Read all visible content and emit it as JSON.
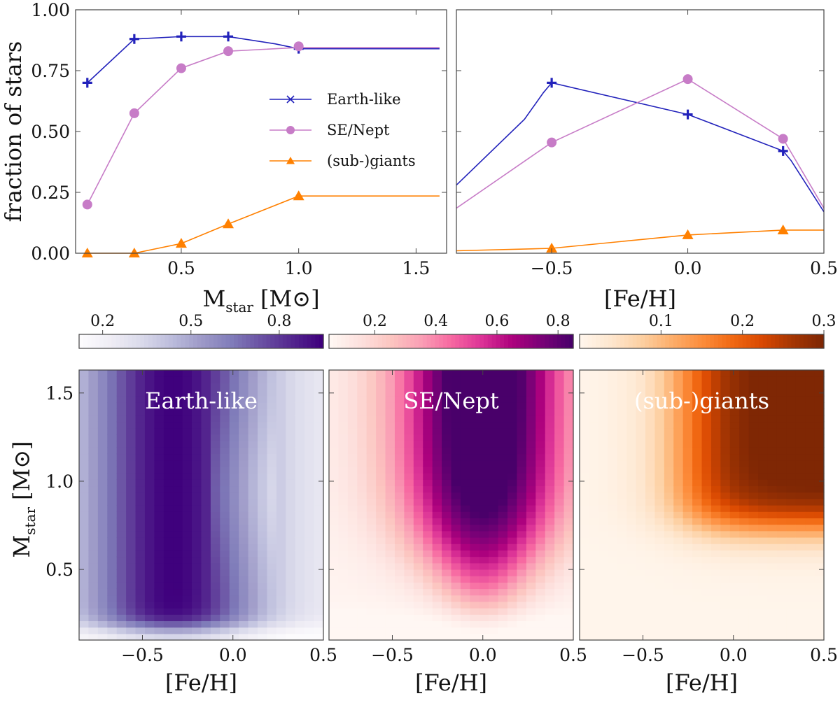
{
  "colors": {
    "earth": "#2222bb",
    "se": "#c77cc7",
    "giants": "#ff8000",
    "purples_max": "#3f007d",
    "rdpu_max": "#49006a",
    "oranges_max": "#7f2704"
  },
  "chart_data": [
    {
      "id": "top-left",
      "type": "line",
      "xlabel": "M",
      "xlabel_sub": "star",
      "xlabel_unit": "[M",
      "xlabel_unit_end": "]",
      "ylabel": "fraction of stars",
      "xlim": [
        0.05,
        1.63
      ],
      "ylim": [
        0.0,
        1.0
      ],
      "xticks": [
        0.5,
        1.0,
        1.5
      ],
      "xticklabels": [
        "0.5",
        "1.0",
        "1.5"
      ],
      "yticks": [
        0.0,
        0.25,
        0.5,
        0.75,
        1.0
      ],
      "yticklabels": [
        "0.00",
        "0.25",
        "0.50",
        "0.75",
        "1.00"
      ],
      "legend": {
        "position": "center-right",
        "entries": [
          "Earth-like",
          "SE/Nept",
          "(sub-)giants"
        ]
      },
      "series": [
        {
          "name": "Earth-like",
          "marker": "plus",
          "color": "#2222bb",
          "x": [
            0.1,
            0.3,
            0.5,
            0.7,
            1.0
          ],
          "y": [
            0.7,
            0.88,
            0.89,
            0.89,
            0.84
          ],
          "line": [
            [
              0.1,
              0.7
            ],
            [
              0.3,
              0.88
            ],
            [
              0.5,
              0.89
            ],
            [
              0.7,
              0.89
            ],
            [
              0.9,
              0.86
            ],
            [
              1.0,
              0.84
            ],
            [
              1.6,
              0.84
            ]
          ]
        },
        {
          "name": "SE/Nept",
          "marker": "circle",
          "color": "#c77cc7",
          "x": [
            0.1,
            0.3,
            0.5,
            0.7,
            1.0
          ],
          "y": [
            0.2,
            0.575,
            0.76,
            0.83,
            0.85
          ],
          "line": [
            [
              0.1,
              0.2
            ],
            [
              0.3,
              0.575
            ],
            [
              0.5,
              0.76
            ],
            [
              0.7,
              0.83
            ],
            [
              1.0,
              0.845
            ],
            [
              1.6,
              0.845
            ]
          ]
        },
        {
          "name": "(sub-)giants",
          "marker": "triangle",
          "color": "#ff8000",
          "x": [
            0.1,
            0.3,
            0.5,
            0.7,
            1.0
          ],
          "y": [
            0.0,
            0.0,
            0.04,
            0.12,
            0.235
          ],
          "line": [
            [
              0.1,
              0.0
            ],
            [
              0.3,
              0.0
            ],
            [
              0.5,
              0.04
            ],
            [
              0.7,
              0.12
            ],
            [
              1.0,
              0.235
            ],
            [
              1.6,
              0.235
            ]
          ]
        }
      ]
    },
    {
      "id": "top-right",
      "type": "line",
      "xlabel": "[Fe/H]",
      "xlim": [
        -0.85,
        0.5
      ],
      "ylim": [
        0.0,
        1.0
      ],
      "xticks": [
        -0.5,
        0.0,
        0.5
      ],
      "xticklabels": [
        "−0.5",
        "0.0",
        "0.5"
      ],
      "yticks": [
        0.0,
        0.25,
        0.5,
        0.75,
        1.0
      ],
      "series": [
        {
          "name": "Earth-like",
          "marker": "plus",
          "color": "#2222bb",
          "x": [
            -0.5,
            0.0,
            0.35
          ],
          "y": [
            0.7,
            0.57,
            0.42
          ],
          "line": [
            [
              -0.85,
              0.28
            ],
            [
              -0.6,
              0.55
            ],
            [
              -0.53,
              0.66
            ],
            [
              -0.5,
              0.7
            ],
            [
              0.0,
              0.57
            ],
            [
              0.35,
              0.42
            ],
            [
              0.38,
              0.38
            ],
            [
              0.5,
              0.17
            ]
          ]
        },
        {
          "name": "SE/Nept",
          "marker": "circle",
          "color": "#c77cc7",
          "x": [
            -0.5,
            0.0,
            0.35
          ],
          "y": [
            0.455,
            0.715,
            0.47
          ],
          "line": [
            [
              -0.85,
              0.185
            ],
            [
              -0.5,
              0.455
            ],
            [
              0.0,
              0.715
            ],
            [
              0.35,
              0.47
            ],
            [
              0.5,
              0.185
            ]
          ]
        },
        {
          "name": "(sub-)giants",
          "marker": "triangle",
          "color": "#ff8000",
          "x": [
            -0.5,
            0.0,
            0.35
          ],
          "y": [
            0.02,
            0.075,
            0.095
          ],
          "line": [
            [
              -0.85,
              0.01
            ],
            [
              -0.5,
              0.02
            ],
            [
              0.0,
              0.075
            ],
            [
              0.35,
              0.095
            ],
            [
              0.5,
              0.095
            ]
          ]
        }
      ]
    },
    {
      "id": "heat-earth",
      "type": "heatmap",
      "title": "Earth-like",
      "cmap": "Purples",
      "colorbar_range": [
        0.12,
        0.95
      ],
      "colorbar_ticks": [
        0.2,
        0.5,
        0.8
      ],
      "colorbar_ticklabels": [
        "0.2",
        "0.5",
        "0.8"
      ],
      "xlabel": "[Fe/H]",
      "ylabel": "M",
      "ylabel_sub": "star",
      "ylabel_unit": "[M",
      "ylabel_unit_end": "]",
      "xlim": [
        -0.85,
        0.5
      ],
      "ylim": [
        0.1,
        1.63
      ],
      "xticks": [
        -0.5,
        0.0,
        0.5
      ],
      "xticklabels": [
        "−0.5",
        "0.0",
        "0.5"
      ],
      "yticks": [
        0.5,
        1.0,
        1.5
      ],
      "yticklabels": [
        "0.5",
        "1.0",
        "1.5"
      ],
      "model": "earth"
    },
    {
      "id": "heat-se",
      "type": "heatmap",
      "title": "SE/Nept",
      "cmap": "RdPu",
      "colorbar_range": [
        0.05,
        0.85
      ],
      "colorbar_ticks": [
        0.2,
        0.4,
        0.6,
        0.8
      ],
      "colorbar_ticklabels": [
        "0.2",
        "0.4",
        "0.6",
        "0.8"
      ],
      "xlabel": "[Fe/H]",
      "xlim": [
        -0.85,
        0.5
      ],
      "ylim": [
        0.1,
        1.63
      ],
      "xticks": [
        -0.5,
        0.0,
        0.5
      ],
      "xticklabels": [
        "−0.5",
        "0.0",
        "0.5"
      ],
      "model": "se"
    },
    {
      "id": "heat-giants",
      "type": "heatmap",
      "title": "(sub-)giants",
      "cmap": "Oranges",
      "colorbar_range": [
        0.0,
        0.3
      ],
      "colorbar_ticks": [
        0.1,
        0.2,
        0.3
      ],
      "colorbar_ticklabels": [
        "0.1",
        "0.2",
        "0.3"
      ],
      "xlabel": "[Fe/H]",
      "xlim": [
        -0.85,
        0.5
      ],
      "ylim": [
        0.1,
        1.63
      ],
      "xticks": [
        -0.5,
        0.0,
        0.5
      ],
      "xticklabels": [
        "−0.5",
        "0.0",
        "0.5"
      ],
      "model": "giants"
    }
  ]
}
